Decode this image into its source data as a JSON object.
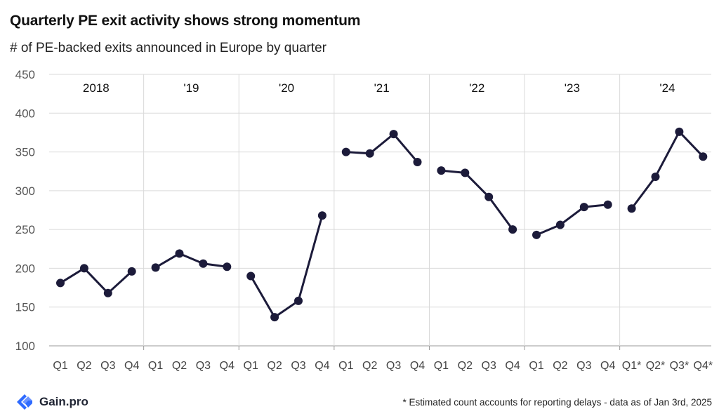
{
  "header": {
    "title": "Quarterly PE exit activity shows strong momentum",
    "subtitle": "# of PE-backed exits announced in Europe by quarter"
  },
  "footer": {
    "brand": "Gain.pro",
    "note": "* Estimated count accounts for reporting delays - data as of Jan 3rd, 2025"
  },
  "colors": {
    "line": "#1c1b3a",
    "grid": "#d9d9d9",
    "brand": "#2f6bff"
  },
  "chart_data": {
    "type": "line",
    "ylim": [
      100,
      450
    ],
    "yticks": [
      100,
      150,
      200,
      250,
      300,
      350,
      400,
      450
    ],
    "grid": true,
    "years": [
      {
        "label": "2018",
        "quarters": [
          "Q1",
          "Q2",
          "Q3",
          "Q4"
        ],
        "values": [
          181,
          200,
          168,
          196
        ]
      },
      {
        "label": "'19",
        "quarters": [
          "Q1",
          "Q2",
          "Q3",
          "Q4"
        ],
        "values": [
          201,
          219,
          206,
          202
        ]
      },
      {
        "label": "'20",
        "quarters": [
          "Q1",
          "Q2",
          "Q3",
          "Q4"
        ],
        "values": [
          190,
          137,
          158,
          268
        ]
      },
      {
        "label": "'21",
        "quarters": [
          "Q1",
          "Q2",
          "Q3",
          "Q4"
        ],
        "values": [
          350,
          348,
          373,
          337
        ]
      },
      {
        "label": "'22",
        "quarters": [
          "Q1",
          "Q2",
          "Q3",
          "Q4"
        ],
        "values": [
          326,
          323,
          292,
          250
        ]
      },
      {
        "label": "'23",
        "quarters": [
          "Q1",
          "Q2",
          "Q3",
          "Q4"
        ],
        "values": [
          243,
          256,
          279,
          282
        ]
      },
      {
        "label": "'24",
        "quarters": [
          "Q1*",
          "Q2*",
          "Q3*",
          "Q4*"
        ],
        "values": [
          277,
          318,
          376,
          344
        ]
      }
    ]
  }
}
